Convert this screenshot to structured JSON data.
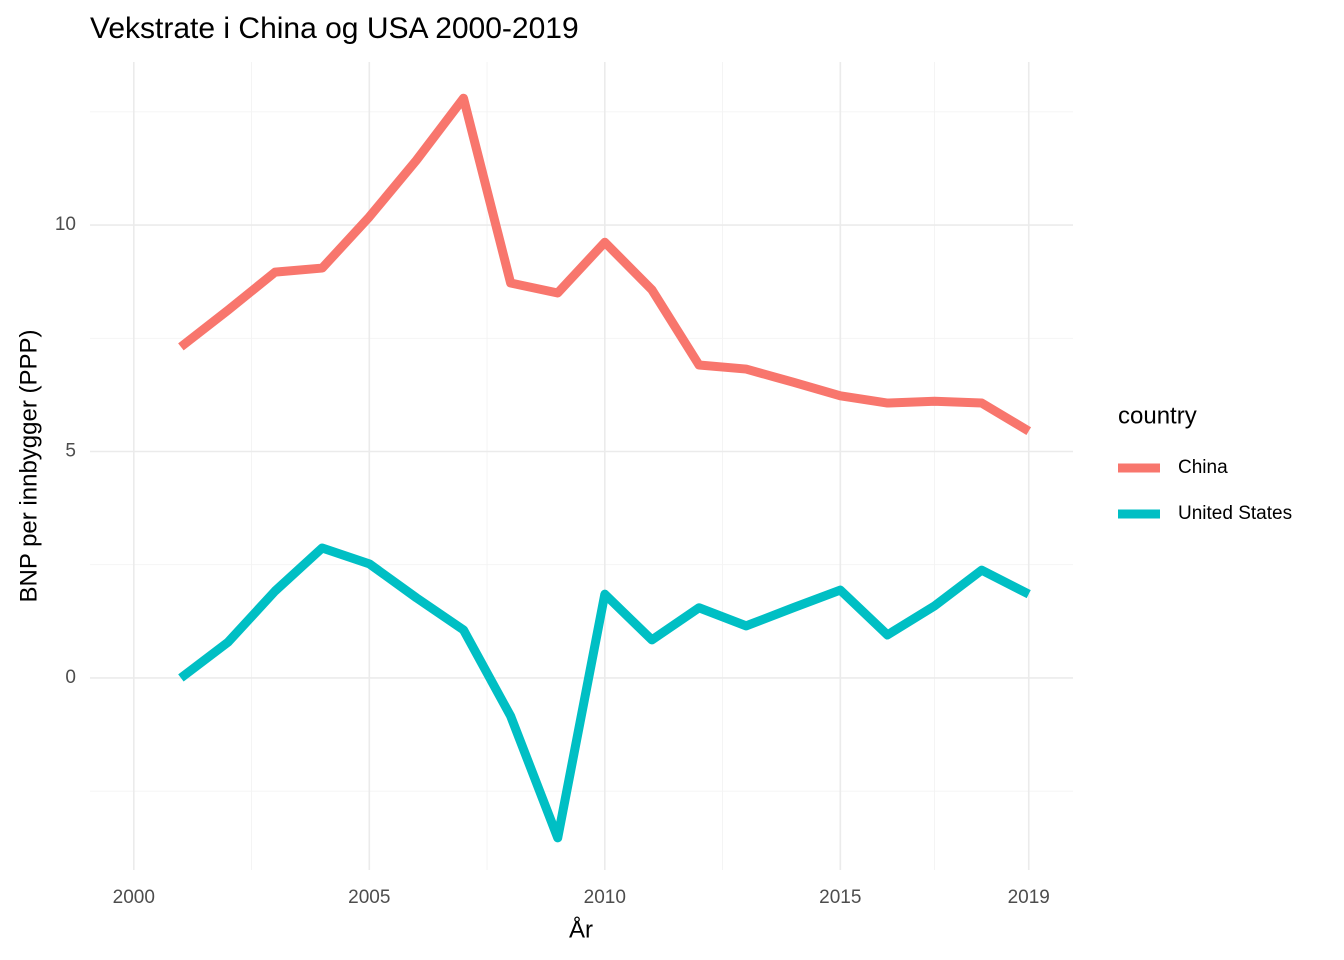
{
  "chart_data": {
    "type": "line",
    "title": "Vekstrate i China og USA 2000-2019",
    "x_label": "År",
    "y_label": "BNP per innbygger (PPP)",
    "legend_title": "country",
    "legend_position": "right",
    "grid": true,
    "x": [
      2001,
      2002,
      2003,
      2004,
      2005,
      2006,
      2007,
      2008,
      2009,
      2010,
      2011,
      2012,
      2013,
      2014,
      2015,
      2016,
      2017,
      2018,
      2019
    ],
    "series": [
      {
        "name": "China",
        "color": "#F8766D",
        "values": [
          7.31,
          8.12,
          8.96,
          9.05,
          10.18,
          11.43,
          12.8,
          8.72,
          8.5,
          9.62,
          8.57,
          6.91,
          6.82,
          6.53,
          6.23,
          6.07,
          6.11,
          6.07,
          5.45
        ]
      },
      {
        "name": "United States",
        "color": "#00BFC4",
        "values": [
          0.0,
          0.79,
          1.92,
          2.87,
          2.52,
          1.77,
          1.06,
          -0.84,
          -3.53,
          1.85,
          0.84,
          1.55,
          1.15,
          1.55,
          1.94,
          0.95,
          1.59,
          2.38,
          1.85
        ]
      }
    ],
    "xlim": [
      1999.07,
      2019.94
    ],
    "xticks": [
      2000,
      2005,
      2010,
      2015,
      2019
    ],
    "x_minor_ticks": [
      2002.5,
      2007.5,
      2012.5,
      2017
    ],
    "ylim": [
      -4.24,
      13.6
    ],
    "yticks": [
      0,
      5,
      10
    ],
    "y_minor_ticks": [
      -2.5,
      2.5,
      7.5,
      12.5
    ]
  }
}
